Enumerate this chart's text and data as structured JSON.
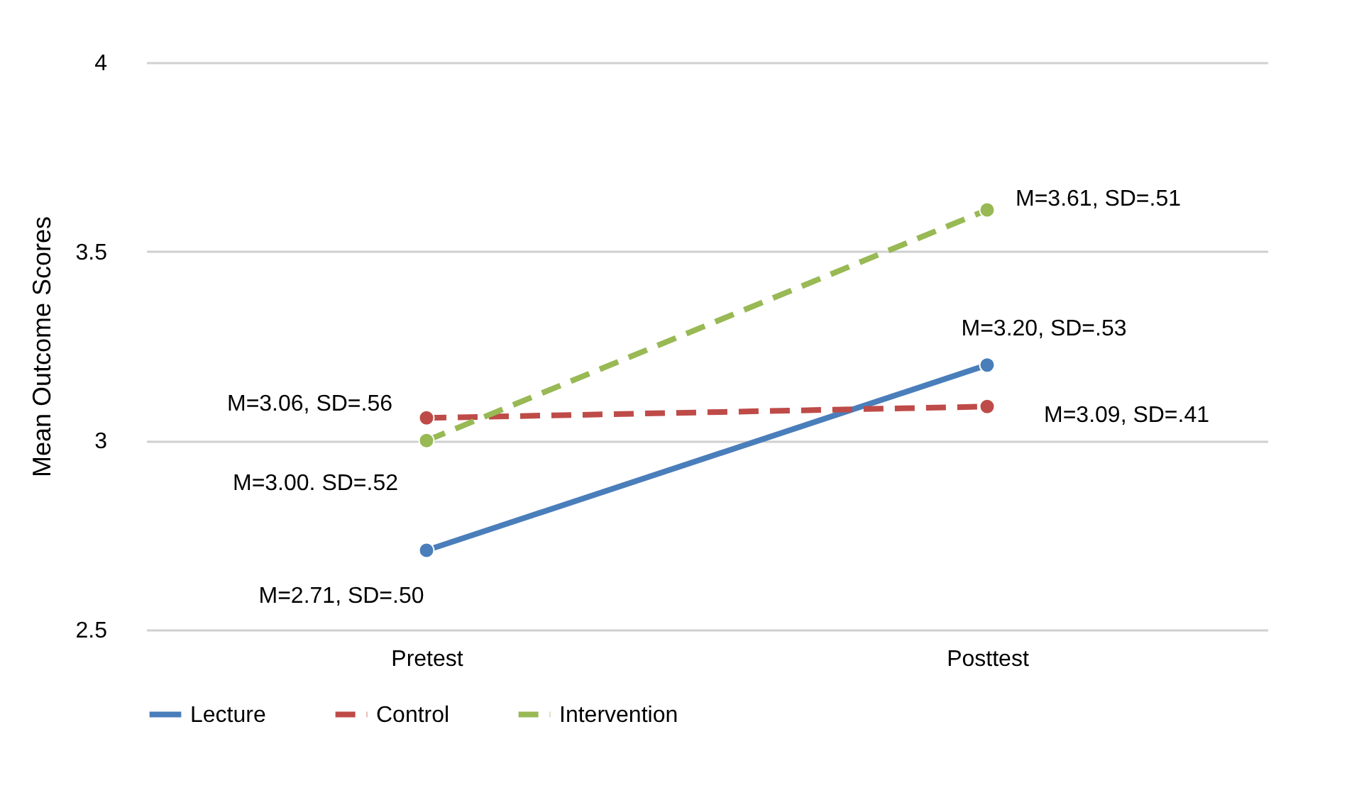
{
  "chart_data": {
    "type": "line",
    "ylabel": "Mean Outcome Scores",
    "categories": [
      "Pretest",
      "Posttest"
    ],
    "series": [
      {
        "name": "Lecture",
        "color": "#4a7ebb",
        "values": [
          2.71,
          3.2
        ],
        "line_style": "solid"
      },
      {
        "name": "Control",
        "color": "#be4b48",
        "values": [
          3.06,
          3.09
        ],
        "line_style": "dashed"
      },
      {
        "name": "Intervention",
        "color": "#98b954",
        "values": [
          3.0,
          3.61
        ],
        "line_style": "dashed"
      }
    ],
    "ylim": [
      2.5,
      4
    ],
    "yticks": [
      2.5,
      3,
      3.5,
      4
    ],
    "grid": "y",
    "legend": "bottom",
    "marker": "circle",
    "annotations": [
      {
        "text": "M=3.06, SD=.56",
        "x": "Pretest",
        "y": 3.06
      },
      {
        "text": "M=3.00. SD=.52",
        "x": "Pretest",
        "y": 3.0
      },
      {
        "text": "M=2.71, SD=.50",
        "x": "Pretest",
        "y": 2.71
      },
      {
        "text": "M=3.61, SD=.51",
        "x": "Posttest",
        "y": 3.61
      },
      {
        "text": "M=3.20, SD=.53",
        "x": "Posttest",
        "y": 3.2
      },
      {
        "text": "M=3.09, SD=.41",
        "x": "Posttest",
        "y": 3.09
      }
    ]
  }
}
